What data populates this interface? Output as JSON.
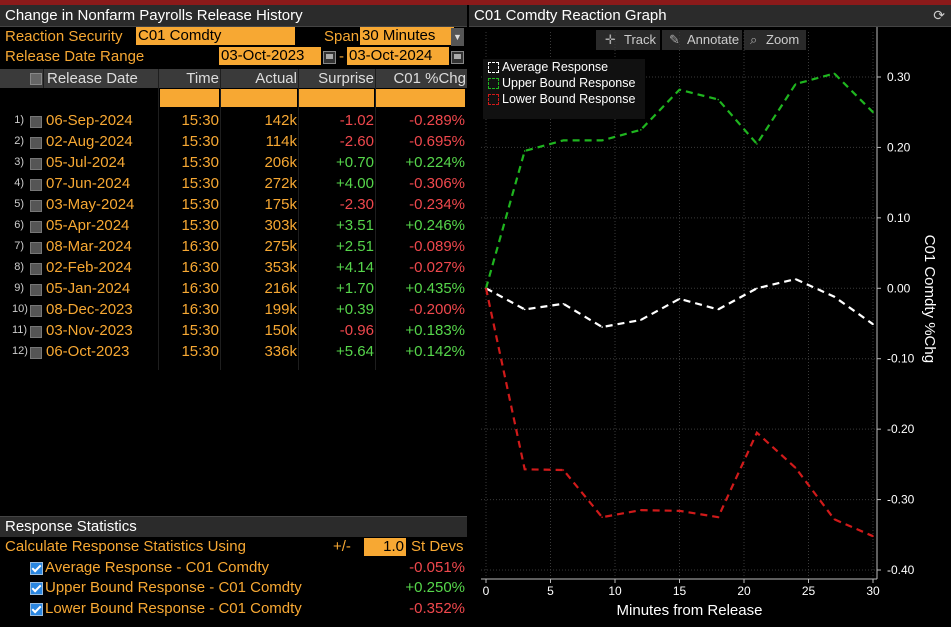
{
  "history": {
    "title": "Change in Nonfarm Payrolls Release History",
    "reaction_security_label": "Reaction Security",
    "reaction_security_value": "C01 Comdty",
    "span_label": "Span",
    "span_value": "30 Minutes",
    "date_range_label": "Release Date Range",
    "date_from": "03-Oct-2023",
    "date_sep": "-",
    "date_to": "03-Oct-2024",
    "columns": [
      "Release Date",
      "Time",
      "Actual",
      "Surprise",
      "C01 %Chg"
    ],
    "rows": [
      {
        "n": "1)",
        "date": "06-Sep-2024",
        "time": "15:30",
        "actual": "142k",
        "surprise": "-1.02",
        "chg": "-0.289%"
      },
      {
        "n": "2)",
        "date": "02-Aug-2024",
        "time": "15:30",
        "actual": "114k",
        "surprise": "-2.60",
        "chg": "-0.695%"
      },
      {
        "n": "3)",
        "date": "05-Jul-2024",
        "time": "15:30",
        "actual": "206k",
        "surprise": "+0.70",
        "chg": "+0.224%"
      },
      {
        "n": "4)",
        "date": "07-Jun-2024",
        "time": "15:30",
        "actual": "272k",
        "surprise": "+4.00",
        "chg": "-0.306%"
      },
      {
        "n": "5)",
        "date": "03-May-2024",
        "time": "15:30",
        "actual": "175k",
        "surprise": "-2.30",
        "chg": "-0.234%"
      },
      {
        "n": "6)",
        "date": "05-Apr-2024",
        "time": "15:30",
        "actual": "303k",
        "surprise": "+3.51",
        "chg": "+0.246%"
      },
      {
        "n": "7)",
        "date": "08-Mar-2024",
        "time": "16:30",
        "actual": "275k",
        "surprise": "+2.51",
        "chg": "-0.089%"
      },
      {
        "n": "8)",
        "date": "02-Feb-2024",
        "time": "16:30",
        "actual": "353k",
        "surprise": "+4.14",
        "chg": "-0.027%"
      },
      {
        "n": "9)",
        "date": "05-Jan-2024",
        "time": "16:30",
        "actual": "216k",
        "surprise": "+1.70",
        "chg": "+0.435%"
      },
      {
        "n": "10)",
        "date": "08-Dec-2023",
        "time": "16:30",
        "actual": "199k",
        "surprise": "+0.39",
        "chg": "-0.200%"
      },
      {
        "n": "11)",
        "date": "03-Nov-2023",
        "time": "15:30",
        "actual": "150k",
        "surprise": "-0.96",
        "chg": "+0.183%"
      },
      {
        "n": "12)",
        "date": "06-Oct-2023",
        "time": "15:30",
        "actual": "336k",
        "surprise": "+5.64",
        "chg": "+0.142%"
      }
    ]
  },
  "stats": {
    "title": "Response Statistics",
    "calc_label": "Calculate Response Statistics Using",
    "pm": "+/-",
    "std_value": "1.0",
    "std_unit": "St Devs",
    "items": [
      {
        "label": "Average Response - C01 Comdty",
        "value": "-0.051%",
        "checked": true
      },
      {
        "label": "Upper Bound Response - C01 Comdty",
        "value": "+0.250%",
        "checked": true
      },
      {
        "label": "Lower Bound Response - C01 Comdty",
        "value": "-0.352%",
        "checked": true
      }
    ]
  },
  "graph": {
    "title": "C01 Comdty Reaction Graph",
    "tools": [
      "Track",
      "Annotate",
      "Zoom"
    ],
    "legend": [
      "Average Response",
      "Upper Bound Response",
      "Lower Bound Response"
    ],
    "colors": {
      "average": "#ffffff",
      "upper": "#1fb51f",
      "lower": "#d01a1a"
    }
  },
  "chart_data": {
    "type": "line",
    "xlabel": "Minutes from Release",
    "ylabel": "C01 Comdty %Chg",
    "xlim": [
      0,
      30
    ],
    "ylim": [
      -0.4,
      0.3
    ],
    "xticks": [
      0,
      5,
      10,
      15,
      20,
      25,
      30
    ],
    "yticks": [
      0.3,
      0.2,
      0.1,
      0.0,
      -0.1,
      -0.2,
      -0.3,
      -0.4
    ],
    "ytick_labels": [
      "0.30",
      "0.20",
      "0.10",
      "0.00",
      "-0.10",
      "-0.20",
      "-0.30",
      "-0.40"
    ],
    "x": [
      0,
      3,
      6,
      9,
      12,
      15,
      18,
      21,
      24,
      27,
      30
    ],
    "series": [
      {
        "name": "Average Response",
        "color": "#ffffff",
        "values": [
          0.0,
          -0.03,
          -0.022,
          -0.055,
          -0.045,
          -0.015,
          -0.03,
          0.0,
          0.013,
          -0.012,
          -0.051
        ]
      },
      {
        "name": "Upper Bound Response",
        "color": "#1fb51f",
        "values": [
          0.0,
          0.195,
          0.21,
          0.21,
          0.225,
          0.282,
          0.268,
          0.205,
          0.29,
          0.305,
          0.25
        ]
      },
      {
        "name": "Lower Bound Response",
        "color": "#d01a1a",
        "values": [
          0.0,
          -0.257,
          -0.258,
          -0.325,
          -0.315,
          -0.316,
          -0.325,
          -0.205,
          -0.255,
          -0.328,
          -0.352
        ]
      }
    ]
  }
}
